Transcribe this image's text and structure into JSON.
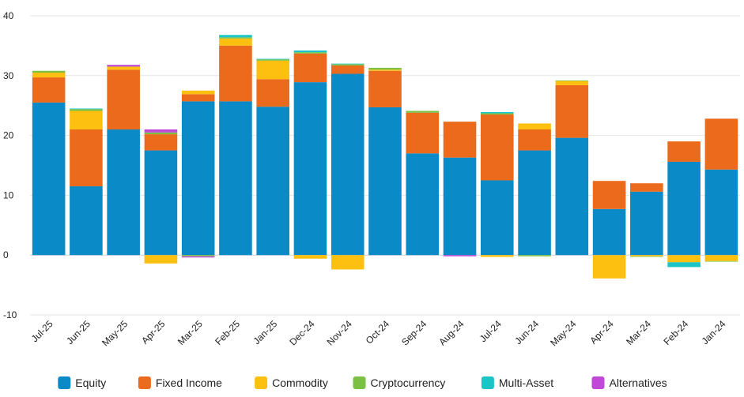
{
  "chart_data": {
    "type": "bar",
    "stacked": true,
    "categories": [
      "Jul-25",
      "Jun-25",
      "May-25",
      "Apr-25",
      "Mar-25",
      "Feb-25",
      "Jan-25",
      "Dec-24",
      "Nov-24",
      "Oct-24",
      "Sep-24",
      "Aug-24",
      "Jul-24",
      "Jun-24",
      "May-24",
      "Apr-24",
      "Mar-24",
      "Feb-24",
      "Jan-24"
    ],
    "ylim": [
      -10,
      40
    ],
    "yticks": [
      -10,
      0,
      10,
      20,
      30,
      40
    ],
    "grid": true,
    "legend": "bottom",
    "series": [
      {
        "name": "Equity",
        "color": "#0a8ac7",
        "values": [
          25.5,
          11.5,
          21,
          17.5,
          25.7,
          25.7,
          24.8,
          28.9,
          30.3,
          24.7,
          17,
          16.3,
          12.5,
          17.5,
          19.6,
          7.7,
          10.6,
          15.6,
          14.3
        ]
      },
      {
        "name": "Fixed Income",
        "color": "#eb6a1c",
        "values": [
          4.2,
          9.5,
          10,
          2.7,
          1.2,
          9.3,
          4.6,
          4.8,
          1.4,
          6.1,
          6.8,
          6,
          11,
          3.5,
          8.8,
          4.7,
          1.4,
          3.4,
          8.5
        ]
      },
      {
        "name": "Commodity",
        "color": "#fdbf10",
        "values": [
          0.8,
          3.1,
          0.5,
          -1.4,
          0.6,
          1.2,
          3.1,
          -0.6,
          -2.4,
          0.2,
          0,
          0,
          -0.3,
          1,
          0.7,
          -3.9,
          -0.2,
          -1.2,
          -1
        ]
      },
      {
        "name": "Cryptocurrency",
        "color": "#7ac143",
        "values": [
          0.3,
          0.3,
          0,
          0.3,
          -0.2,
          0.2,
          0.2,
          0.2,
          0.2,
          0.3,
          0.3,
          0,
          0.2,
          -0.2,
          0.1,
          0,
          -0.1,
          0,
          -0.1
        ]
      },
      {
        "name": "Multi-Asset",
        "color": "#1bc5c5",
        "values": [
          0,
          0.1,
          0,
          0,
          0,
          0.4,
          0.1,
          0.3,
          0.1,
          0,
          0,
          0,
          0.2,
          0,
          0,
          0,
          0,
          -0.8,
          0
        ]
      },
      {
        "name": "Alternatives",
        "color": "#c049d8",
        "values": [
          0,
          0,
          0.3,
          0.5,
          -0.2,
          0,
          0,
          0,
          0,
          0,
          0,
          -0.2,
          0,
          0,
          0,
          0,
          0,
          0,
          0
        ]
      }
    ]
  }
}
